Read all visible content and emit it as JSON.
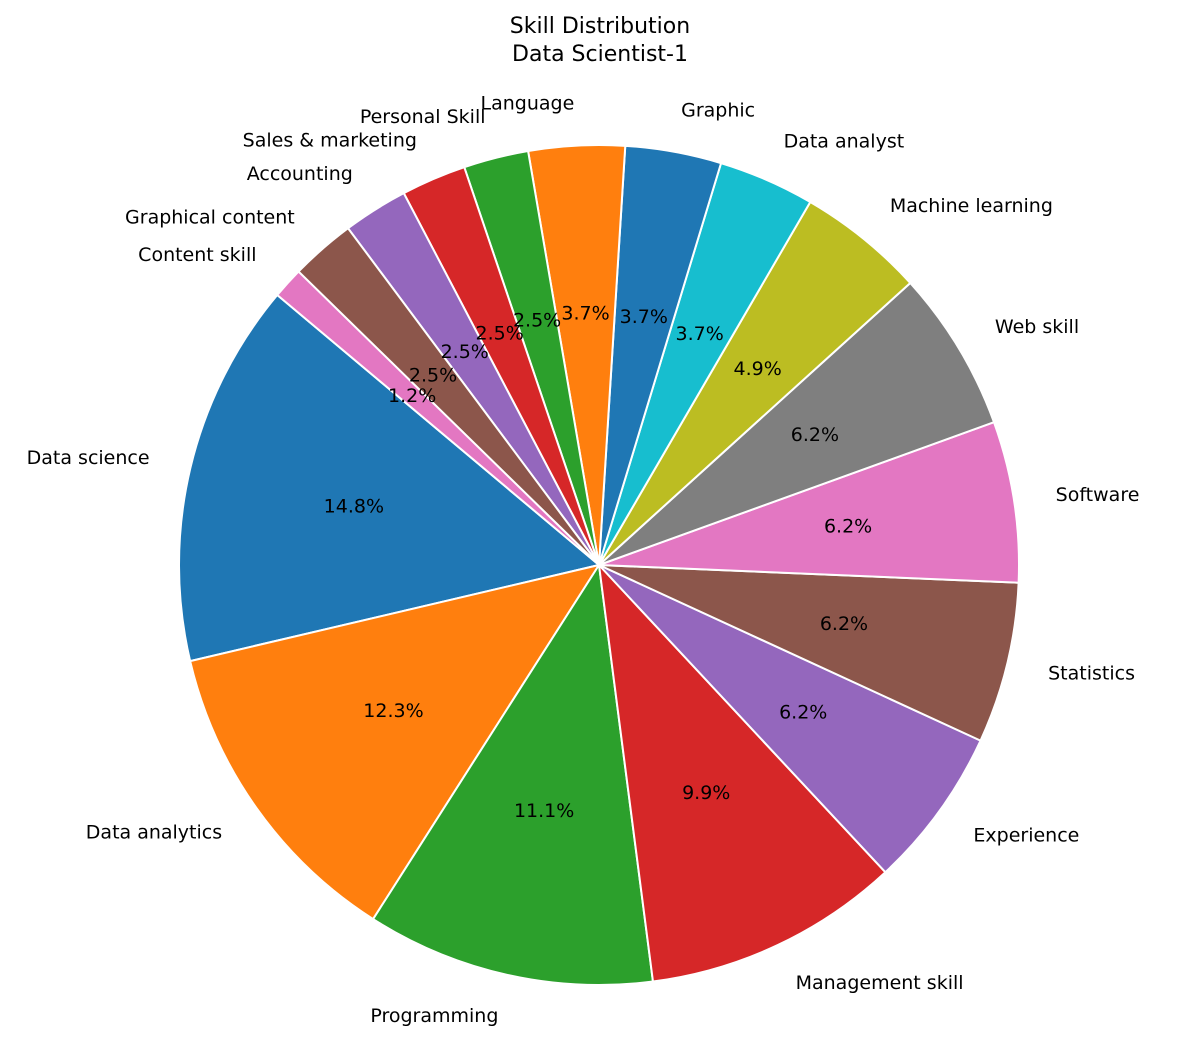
{
  "chart_data": {
    "type": "pie",
    "title": "Skill Distribution",
    "subtitle": "Data Scientist-1",
    "start_angle_deg": 140,
    "direction": "counterclockwise",
    "slices": [
      {
        "label": "Data science",
        "value": 14.8,
        "pct_label": "14.8%",
        "color": "#1f77b4"
      },
      {
        "label": "Data analytics",
        "value": 12.3,
        "pct_label": "12.3%",
        "color": "#ff7f0e"
      },
      {
        "label": "Programming",
        "value": 11.1,
        "pct_label": "11.1%",
        "color": "#2ca02c"
      },
      {
        "label": "Management skill",
        "value": 9.9,
        "pct_label": "9.9%",
        "color": "#d62728"
      },
      {
        "label": "Experience",
        "value": 6.2,
        "pct_label": "6.2%",
        "color": "#9467bd"
      },
      {
        "label": "Statistics",
        "value": 6.2,
        "pct_label": "6.2%",
        "color": "#8c564b"
      },
      {
        "label": "Software",
        "value": 6.2,
        "pct_label": "6.2%",
        "color": "#e377c2"
      },
      {
        "label": "Web skill",
        "value": 6.2,
        "pct_label": "6.2%",
        "color": "#7f7f7f"
      },
      {
        "label": "Machine learning",
        "value": 4.9,
        "pct_label": "4.9%",
        "color": "#bcbd22"
      },
      {
        "label": "Data analyst",
        "value": 3.7,
        "pct_label": "3.7%",
        "color": "#17becf"
      },
      {
        "label": "Graphic",
        "value": 3.7,
        "pct_label": "3.7%",
        "color": "#1f77b4"
      },
      {
        "label": "Language",
        "value": 3.7,
        "pct_label": "3.7%",
        "color": "#ff7f0e"
      },
      {
        "label": "Personal Skill",
        "value": 2.5,
        "pct_label": "2.5%",
        "color": "#2ca02c"
      },
      {
        "label": "Sales & marketing",
        "value": 2.5,
        "pct_label": "2.5%",
        "color": "#d62728"
      },
      {
        "label": "Accounting",
        "value": 2.5,
        "pct_label": "2.5%",
        "color": "#9467bd"
      },
      {
        "label": "Graphical content",
        "value": 2.5,
        "pct_label": "2.5%",
        "color": "#8c564b"
      },
      {
        "label": "Content skill",
        "value": 1.2,
        "pct_label": "1.2%",
        "color": "#e377c2"
      }
    ]
  }
}
